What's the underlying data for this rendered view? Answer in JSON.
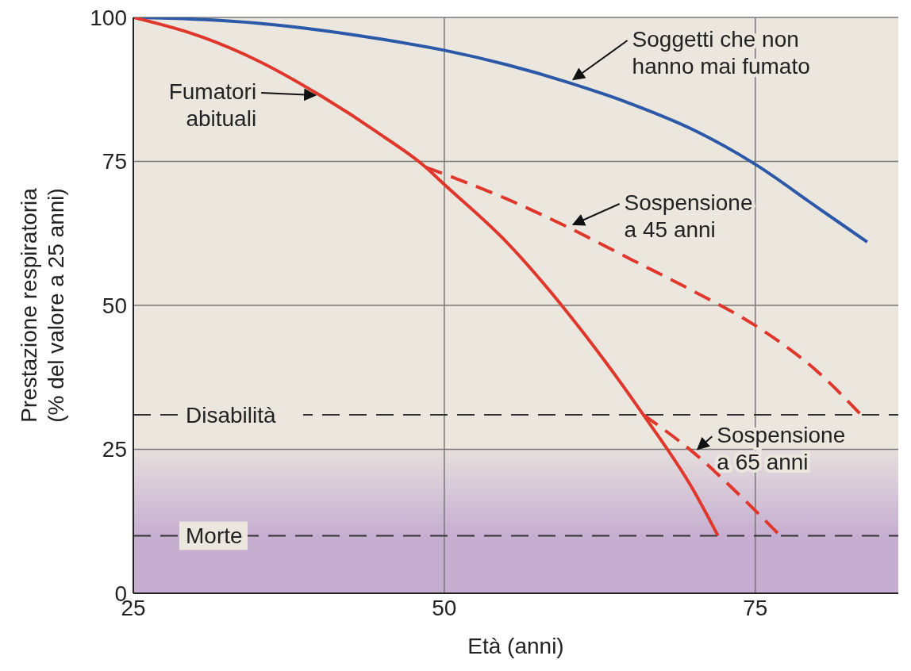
{
  "chart_data": {
    "type": "line",
    "xlabel": "Età (anni)",
    "ylabel": "Prestazione respiratoria (% del valore a 25 anni)",
    "xlim": [
      25,
      86.5
    ],
    "ylim": [
      0,
      100
    ],
    "xticks": [
      25,
      50,
      75
    ],
    "yticks": [
      0,
      25,
      50,
      75,
      100
    ],
    "grid": true,
    "legend": false,
    "marker": "none",
    "series": [
      {
        "name": "Soggetti che non hanno mai fumato",
        "color": "#2c58a8",
        "line_style": "solid",
        "x": [
          25,
          30,
          35,
          40,
          45,
          50,
          55,
          60,
          65,
          70,
          75,
          80,
          84
        ],
        "values": [
          100,
          99.7,
          99,
          97.8,
          96.2,
          94.3,
          91.8,
          88.7,
          85,
          80.5,
          74.5,
          67,
          61
        ]
      },
      {
        "name": "Fumatori abituali",
        "color": "#e0372c",
        "line_style": "solid",
        "x": [
          25,
          30,
          35,
          40,
          45,
          48.5,
          50,
          55,
          60,
          66,
          70,
          72
        ],
        "values": [
          100,
          97,
          92.5,
          86.5,
          79.5,
          74,
          71,
          61,
          48.5,
          31,
          18,
          10
        ]
      },
      {
        "name": "Sospensione a 45 anni",
        "color": "#e0372c",
        "line_style": "dashed",
        "x": [
          48.5,
          55,
          60,
          65,
          70,
          75,
          80,
          83.5
        ],
        "values": [
          74,
          68.5,
          63.5,
          58,
          52.5,
          46.5,
          38.5,
          31
        ]
      },
      {
        "name": "Sospensione a 65 anni",
        "color": "#e0372c",
        "line_style": "dashed",
        "x": [
          66,
          70,
          74,
          77
        ],
        "values": [
          31,
          24.5,
          16.5,
          10
        ]
      }
    ],
    "ref_lines": [
      {
        "axis": "y",
        "value": 31,
        "label": "Disabilità",
        "line_style": "dashed",
        "color": "#333333"
      },
      {
        "axis": "y",
        "value": 10,
        "label": "Morte",
        "line_style": "dashed",
        "color": "#333333"
      }
    ],
    "bands": [
      {
        "axis": "y",
        "from": 0,
        "to": 25,
        "color": "#c6aed1"
      }
    ]
  }
}
